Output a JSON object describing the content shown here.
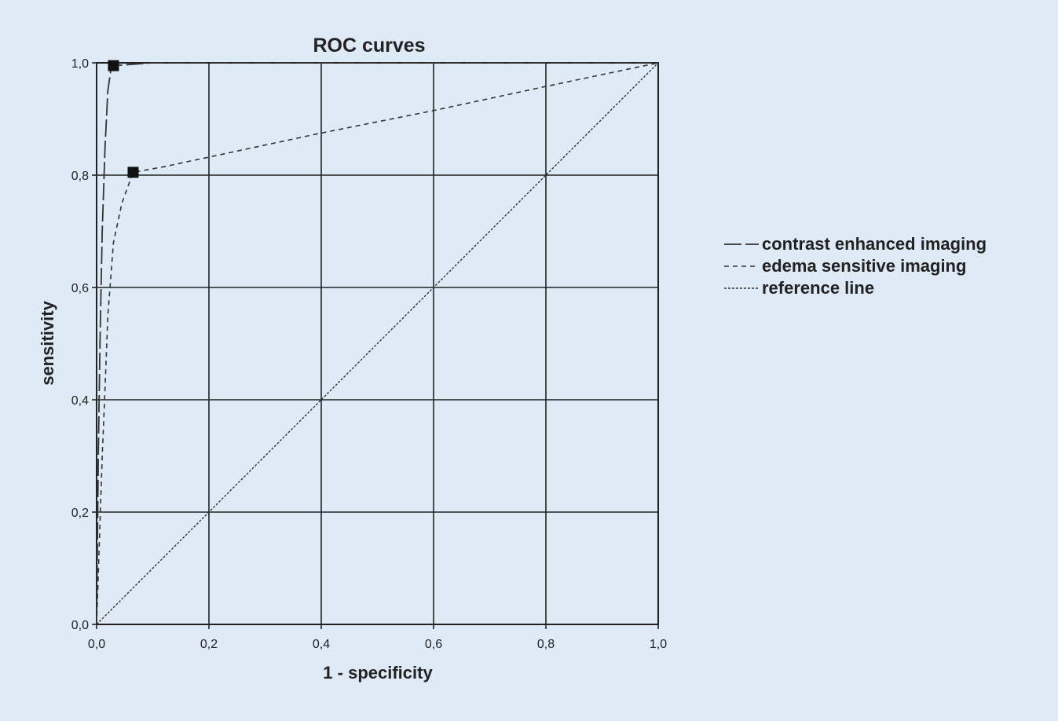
{
  "chart_data": {
    "type": "line",
    "title": "ROC curves",
    "xlabel": "1 - specificity",
    "ylabel": "sensitivity",
    "xlim": [
      0,
      1
    ],
    "ylim": [
      0,
      1
    ],
    "xticks": [
      "0,0",
      "0,2",
      "0,4",
      "0,6",
      "0,8",
      "1,0"
    ],
    "yticks": [
      "0,0",
      "0,2",
      "0,4",
      "0,6",
      "0,8",
      "1,0"
    ],
    "grid": true,
    "legend_position": "right",
    "series": [
      {
        "name": "contrast enhanced imaging",
        "style": "long-dash",
        "x": [
          0,
          0.003,
          0.006,
          0.01,
          0.015,
          0.02,
          0.025,
          0.03,
          0.1,
          1.0
        ],
        "y": [
          0,
          0.3,
          0.5,
          0.7,
          0.85,
          0.95,
          0.985,
          0.995,
          1.0,
          1.0
        ],
        "marker": {
          "x": 0.03,
          "y": 0.995
        }
      },
      {
        "name": "edema sensitive imaging",
        "style": "short-dash",
        "x": [
          0,
          0.005,
          0.01,
          0.015,
          0.02,
          0.03,
          0.045,
          0.065,
          0.12,
          0.4,
          0.6,
          0.8,
          1.0
        ],
        "y": [
          0,
          0.15,
          0.3,
          0.42,
          0.55,
          0.68,
          0.75,
          0.805,
          0.815,
          0.875,
          0.915,
          0.958,
          1.0
        ],
        "marker": {
          "x": 0.065,
          "y": 0.805
        }
      },
      {
        "name": "reference line",
        "style": "dotted",
        "x": [
          0,
          1
        ],
        "y": [
          0,
          1
        ]
      }
    ]
  }
}
